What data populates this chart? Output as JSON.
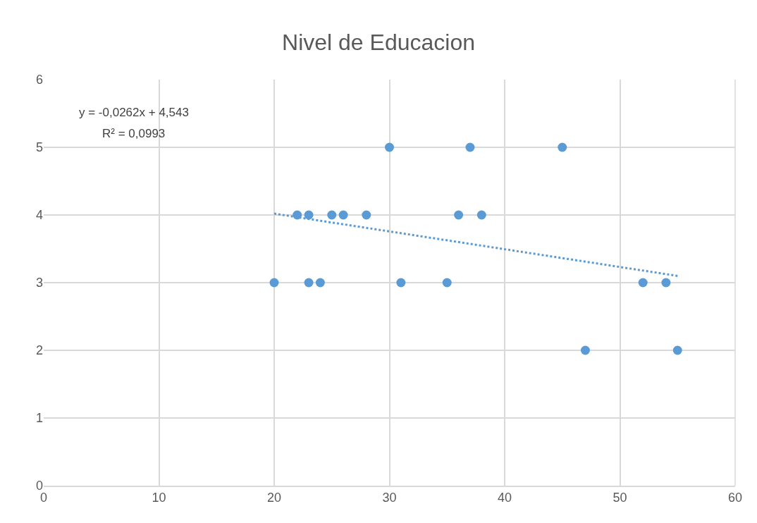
{
  "chart_data": {
    "type": "scatter",
    "title": "Nivel de Educacion",
    "series": [
      {
        "color": "#5b9bd5",
        "marker": "circle",
        "x": [
          20,
          22,
          23,
          23,
          24,
          25,
          26,
          28,
          30,
          31,
          35,
          36,
          37,
          38,
          45,
          47,
          52,
          54,
          55
        ],
        "values": [
          3,
          4,
          4,
          3,
          3,
          4,
          4,
          4,
          5,
          3,
          3,
          4,
          5,
          4,
          5,
          2,
          3,
          3,
          2
        ]
      },
      {
        "type": "line",
        "color": "#5b9bd5",
        "line_style": "dotted",
        "marker": "none",
        "x": [
          20,
          55
        ],
        "values": [
          4.02,
          3.1
        ]
      }
    ],
    "xlim": [
      0,
      60
    ],
    "xticks": [
      0,
      10,
      20,
      30,
      40,
      50,
      60
    ],
    "ylim": [
      0,
      6
    ],
    "yticks": [
      0,
      1,
      2,
      3,
      4,
      5,
      6
    ],
    "grid": true,
    "annotations": [
      "y = -0,0262x + 4,543",
      "R² = 0,0993"
    ]
  }
}
